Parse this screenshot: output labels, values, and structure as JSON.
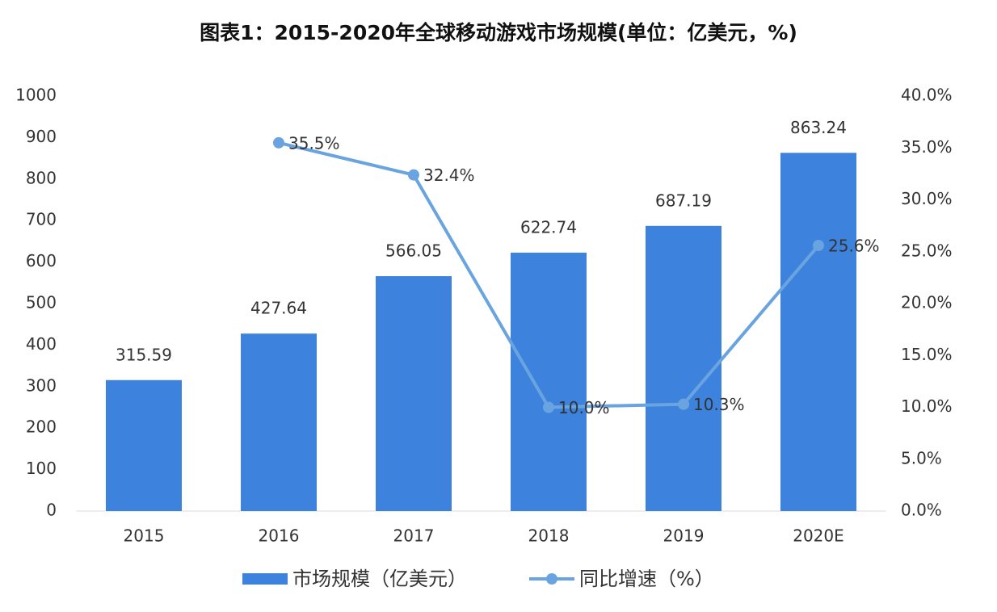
{
  "chart_data": {
    "type": "bar",
    "title": "图表1：2015-2020年全球移动游戏市场规模(单位：亿美元，%)",
    "categories": [
      "2015",
      "2016",
      "2017",
      "2018",
      "2019",
      "2020E"
    ],
    "series": [
      {
        "name": "市场规模（亿美元）",
        "type": "bar",
        "color": "#3d82dc",
        "values": [
          315.59,
          427.64,
          566.05,
          622.74,
          687.19,
          863.24
        ]
      },
      {
        "name": "同比增速（%）",
        "type": "line",
        "axis": "y2",
        "color": "#6aa4e0",
        "values": [
          null,
          35.5,
          32.4,
          10.0,
          10.3,
          25.6
        ],
        "value_labels": [
          null,
          "35.5%",
          "32.4%",
          "10.0%",
          "10.3%",
          "25.6%"
        ]
      }
    ],
    "ylim": [
      0,
      1000
    ],
    "yticks": [
      0,
      100,
      200,
      300,
      400,
      500,
      600,
      700,
      800,
      900,
      1000
    ],
    "y2lim": [
      0,
      40
    ],
    "y2ticks": [
      {
        "value": 0,
        "label": "0.0%"
      },
      {
        "value": 5,
        "label": "5.0%"
      },
      {
        "value": 10,
        "label": "10.0%"
      },
      {
        "value": 15,
        "label": "15.0%"
      },
      {
        "value": 20,
        "label": "20.0%"
      },
      {
        "value": 25,
        "label": "25.0%"
      },
      {
        "value": 30,
        "label": "30.0%"
      },
      {
        "value": 35,
        "label": "35.0%"
      },
      {
        "value": 40,
        "label": "40.0%"
      }
    ],
    "legend": "bottom"
  }
}
